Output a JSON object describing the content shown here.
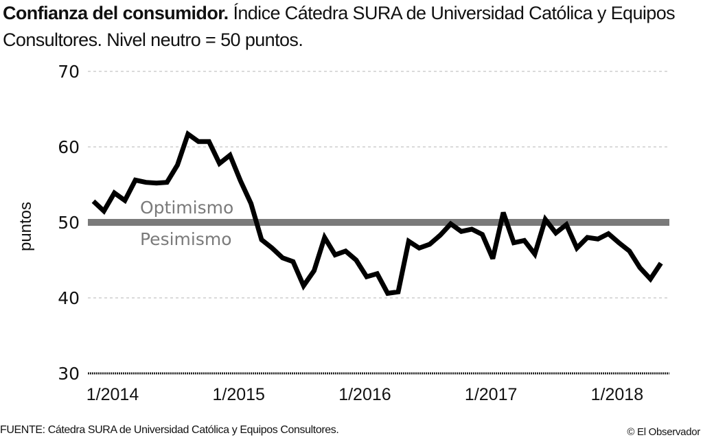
{
  "header": {
    "title_bold": "Confianza del consumidor.",
    "title_rest": " Índice Cátedra SURA de Universidad Católica y Equipos Consultores. Nivel neutro = 50 puntos."
  },
  "footer": {
    "source": "FUENTE: Cátedra SURA de Universidad Católica y Equipos Consultores.",
    "copyright": "© El Observador"
  },
  "colors": {
    "line": "#000000",
    "neutral_band": "#7a7a7a",
    "band_label": "#7a7a7a",
    "grid": "#b5b5b5"
  },
  "chart_data": {
    "type": "line",
    "title": "Confianza del consumidor. Índice Cátedra SURA de Universidad Católica y Equipos Consultores. Nivel neutro = 50 puntos.",
    "xlabel": "",
    "ylabel": "puntos",
    "ylim": [
      30,
      70
    ],
    "yticks": [
      30,
      40,
      50,
      60,
      70
    ],
    "ytick_labels": [
      "30",
      "40",
      "50",
      "60",
      "70"
    ],
    "grid": true,
    "x_start": "1/2014",
    "x_frequency": "monthly",
    "xticks": [
      {
        "label": "1/2014",
        "index": 0
      },
      {
        "label": "1/2015",
        "index": 12
      },
      {
        "label": "1/2016",
        "index": 24
      },
      {
        "label": "1/2017",
        "index": 36
      },
      {
        "label": "1/2018",
        "index": 48
      }
    ],
    "reference_line": {
      "value": 50,
      "label_above": "Optimismo",
      "label_below": "Pesimismo"
    },
    "series": [
      {
        "name": "Índice de confianza del consumidor",
        "values": [
          52.8,
          51.5,
          53.9,
          52.9,
          55.6,
          55.3,
          55.2,
          55.3,
          57.6,
          61.7,
          60.7,
          60.7,
          57.8,
          58.9,
          55.5,
          52.5,
          47.7,
          46.6,
          45.3,
          44.8,
          41.6,
          43.6,
          48.0,
          45.7,
          46.2,
          45.0,
          42.8,
          43.2,
          40.6,
          40.8,
          47.5,
          46.6,
          47.1,
          48.3,
          49.8,
          48.8,
          49.1,
          48.4,
          45.2,
          51.3,
          47.3,
          47.6,
          45.8,
          50.4,
          48.6,
          49.7,
          46.6,
          48.0,
          47.8,
          48.5,
          47.3,
          46.2,
          44.0,
          42.5,
          44.6
        ]
      }
    ]
  }
}
